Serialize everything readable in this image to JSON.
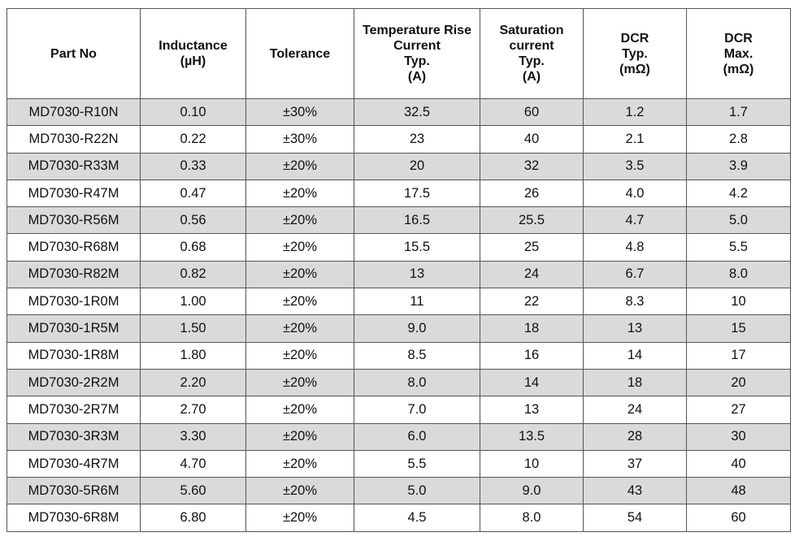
{
  "table": {
    "headers": [
      {
        "lines": [
          "Part No"
        ]
      },
      {
        "lines": [
          "Inductance",
          "(µH)"
        ]
      },
      {
        "lines": [
          "Tolerance"
        ]
      },
      {
        "lines": [
          "Temperature Rise",
          "Current",
          "Typ.",
          "(A)"
        ]
      },
      {
        "lines": [
          "Saturation",
          "current",
          "Typ.",
          "(A)"
        ]
      },
      {
        "lines": [
          "DCR",
          "Typ.",
          "(mΩ)"
        ]
      },
      {
        "lines": [
          "DCR",
          "Max.",
          "(mΩ)"
        ]
      }
    ],
    "rows": [
      [
        "MD7030-R10N",
        "0.10",
        "±30%",
        "32.5",
        "60",
        "1.2",
        "1.7"
      ],
      [
        "MD7030-R22N",
        "0.22",
        "±30%",
        "23",
        "40",
        "2.1",
        "2.8"
      ],
      [
        "MD7030-R33M",
        "0.33",
        "±20%",
        "20",
        "32",
        "3.5",
        "3.9"
      ],
      [
        "MD7030-R47M",
        "0.47",
        "±20%",
        "17.5",
        "26",
        "4.0",
        "4.2"
      ],
      [
        "MD7030-R56M",
        "0.56",
        "±20%",
        "16.5",
        "25.5",
        "4.7",
        "5.0"
      ],
      [
        "MD7030-R68M",
        "0.68",
        "±20%",
        "15.5",
        "25",
        "4.8",
        "5.5"
      ],
      [
        "MD7030-R82M",
        "0.82",
        "±20%",
        "13",
        "24",
        "6.7",
        "8.0"
      ],
      [
        "MD7030-1R0M",
        "1.00",
        "±20%",
        "11",
        "22",
        "8.3",
        "10"
      ],
      [
        "MD7030-1R5M",
        "1.50",
        "±20%",
        "9.0",
        "18",
        "13",
        "15"
      ],
      [
        "MD7030-1R8M",
        "1.80",
        "±20%",
        "8.5",
        "16",
        "14",
        "17"
      ],
      [
        "MD7030-2R2M",
        "2.20",
        "±20%",
        "8.0",
        "14",
        "18",
        "20"
      ],
      [
        "MD7030-2R7M",
        "2.70",
        "±20%",
        "7.0",
        "13",
        "24",
        "27"
      ],
      [
        "MD7030-3R3M",
        "3.30",
        "±20%",
        "6.0",
        "13.5",
        "28",
        "30"
      ],
      [
        "MD7030-4R7M",
        "4.70",
        "±20%",
        "5.5",
        "10",
        "37",
        "40"
      ],
      [
        "MD7030-5R6M",
        "5.60",
        "±20%",
        "5.0",
        "9.0",
        "43",
        "48"
      ],
      [
        "MD7030-6R8M",
        "6.80",
        "±20%",
        "4.5",
        "8.0",
        "54",
        "60"
      ]
    ]
  }
}
